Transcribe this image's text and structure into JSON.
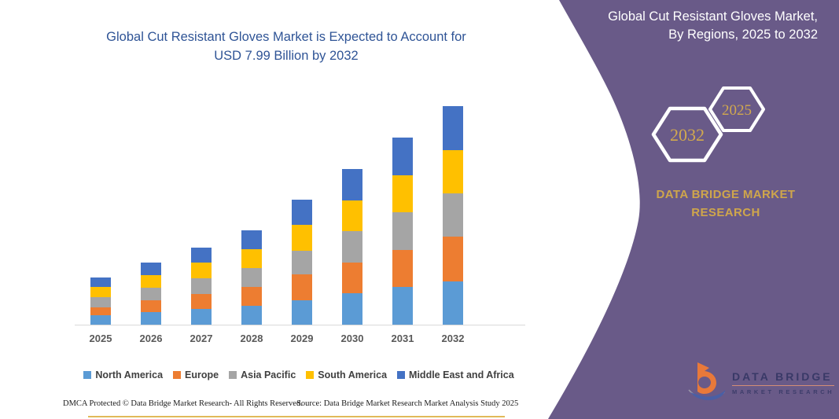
{
  "page": {
    "accent_purple": "#695a88",
    "gold": "#cfa64b"
  },
  "chart": {
    "title_line1": "Global Cut Resistant Gloves Market is Expected to Account for",
    "title_line2": "USD 7.99 Billion by 2032"
  },
  "chart_data": {
    "type": "bar",
    "stacked": true,
    "title": "Global Cut Resistant Gloves Market is Expected to Account for USD 7.99 Billion by 2032",
    "unit": "USD Billion",
    "categories": [
      "2025",
      "2026",
      "2027",
      "2028",
      "2029",
      "2030",
      "2031",
      "2032"
    ],
    "series": [
      {
        "name": "North America",
        "color": "#5B9BD5",
        "values": [
          0.34,
          0.45,
          0.57,
          0.69,
          0.88,
          1.14,
          1.37,
          1.59
        ]
      },
      {
        "name": "Europe",
        "color": "#ED7D31",
        "values": [
          0.29,
          0.45,
          0.56,
          0.69,
          0.96,
          1.14,
          1.37,
          1.62
        ]
      },
      {
        "name": "Asia Pacific",
        "color": "#A5A5A5",
        "values": [
          0.38,
          0.45,
          0.57,
          0.69,
          0.86,
          1.14,
          1.37,
          1.59
        ]
      },
      {
        "name": "South America",
        "color": "#FFC000",
        "values": [
          0.38,
          0.45,
          0.56,
          0.68,
          0.96,
          1.13,
          1.36,
          1.59
        ]
      },
      {
        "name": "Middle East and Africa",
        "color": "#4472C4",
        "values": [
          0.35,
          0.46,
          0.57,
          0.69,
          0.9,
          1.14,
          1.37,
          1.6
        ]
      }
    ],
    "totals": [
      1.74,
      2.26,
      2.83,
      3.44,
      4.56,
      5.69,
      6.84,
      7.99
    ],
    "ylim": [
      0,
      7.99
    ],
    "grid": false,
    "legend_position": "bottom"
  },
  "side_panel": {
    "title_line1": "Global Cut Resistant Gloves Market,",
    "title_line2": "By Regions, 2025 to 2032",
    "hexagon_back_label": "2032",
    "hexagon_front_label": "2025",
    "brand_line1": "DATA BRIDGE MARKET",
    "brand_line2": "RESEARCH"
  },
  "logo": {
    "name": "DATA BRIDGE",
    "tagline": "MARKET RESEARCH"
  },
  "footer": {
    "dmca": "DMCA Protected © Data Bridge Market Research-  All Rights Reserved.",
    "source": "Source: Data Bridge Market Research  Market Analysis Study 2025"
  }
}
